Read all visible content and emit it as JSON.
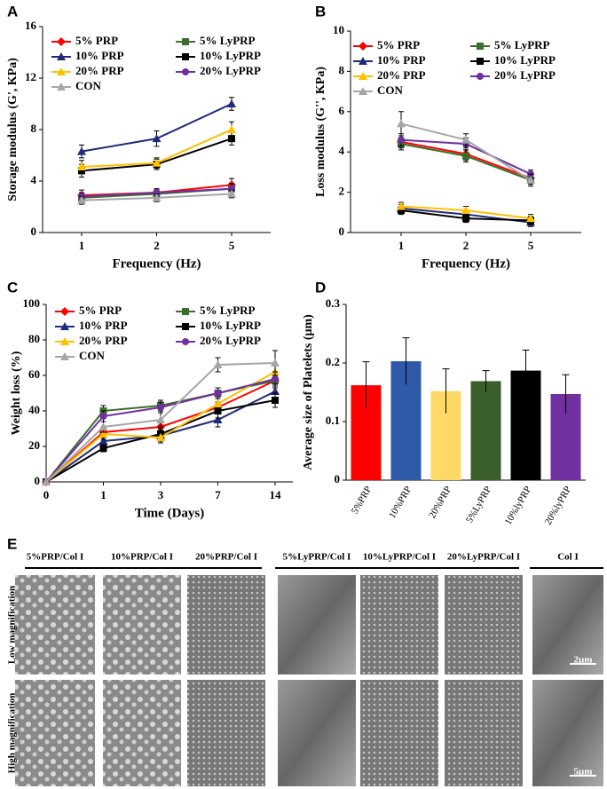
{
  "chart_data": [
    {
      "type": "line",
      "label": "A",
      "x_label": "Frequency (Hz)",
      "y_label": "Storage modulus (G', KPa)",
      "categories": [
        "1",
        "2",
        "5"
      ],
      "ylim": [
        0,
        16
      ],
      "yticks": [
        0,
        4,
        8,
        12,
        16
      ],
      "series": [
        {
          "name": "5% PRP",
          "color": "#ff0000",
          "marker": "diamond",
          "values": [
            2.9,
            3.1,
            3.7
          ],
          "errors": [
            0.4,
            0.3,
            0.5
          ]
        },
        {
          "name": "5% LyPRP",
          "color": "#3a6e2a",
          "marker": "square",
          "values": [
            2.7,
            3.0,
            3.4
          ],
          "errors": [
            0.3,
            0.3,
            0.4
          ]
        },
        {
          "name": "10% PRP",
          "color": "#1f2a7a",
          "marker": "triangle",
          "values": [
            6.3,
            7.3,
            10.0
          ],
          "errors": [
            0.5,
            0.6,
            0.5
          ]
        },
        {
          "name": "10% LyPRP",
          "color": "#000000",
          "marker": "square",
          "values": [
            4.8,
            5.3,
            7.3
          ],
          "errors": [
            0.5,
            0.4,
            0.5
          ]
        },
        {
          "name": "20% PRP",
          "color": "#ffc000",
          "marker": "triangle",
          "values": [
            5.1,
            5.4,
            8.0
          ],
          "errors": [
            0.5,
            0.4,
            0.6
          ]
        },
        {
          "name": "20% LyPRP",
          "color": "#7030a0",
          "marker": "circle",
          "values": [
            2.8,
            3.1,
            3.4
          ],
          "errors": [
            0.3,
            0.3,
            0.4
          ]
        },
        {
          "name": "CON",
          "color": "#a6a6a6",
          "marker": "triangle",
          "values": [
            2.5,
            2.7,
            3.0
          ],
          "errors": [
            0.3,
            0.3,
            0.3
          ]
        }
      ]
    },
    {
      "type": "line",
      "label": "B",
      "x_label": "Frequency (Hz)",
      "y_label": "Loss modulus (G'', KPa)",
      "categories": [
        "1",
        "2",
        "5"
      ],
      "ylim": [
        0,
        10
      ],
      "yticks": [
        0,
        2,
        4,
        6,
        8,
        10
      ],
      "series": [
        {
          "name": "5% PRP",
          "color": "#ff0000",
          "marker": "diamond",
          "values": [
            4.5,
            3.9,
            2.7
          ],
          "errors": [
            0.3,
            0.3,
            0.2
          ]
        },
        {
          "name": "5% LyPRP",
          "color": "#3a6e2a",
          "marker": "square",
          "values": [
            4.4,
            3.8,
            2.6
          ],
          "errors": [
            0.3,
            0.3,
            0.2
          ]
        },
        {
          "name": "10% PRP",
          "color": "#1f2a7a",
          "marker": "triangle",
          "values": [
            1.2,
            0.9,
            0.5
          ],
          "errors": [
            0.2,
            0.2,
            0.2
          ]
        },
        {
          "name": "10% LyPRP",
          "color": "#000000",
          "marker": "square",
          "values": [
            1.1,
            0.7,
            0.6
          ],
          "errors": [
            0.2,
            0.2,
            0.2
          ]
        },
        {
          "name": "20% PRP",
          "color": "#ffc000",
          "marker": "triangle",
          "values": [
            1.3,
            1.1,
            0.7
          ],
          "errors": [
            0.2,
            0.2,
            0.2
          ]
        },
        {
          "name": "20% LyPRP",
          "color": "#7030a0",
          "marker": "circle",
          "values": [
            4.6,
            4.4,
            2.9
          ],
          "errors": [
            0.3,
            0.3,
            0.2
          ]
        },
        {
          "name": "CON",
          "color": "#a6a6a6",
          "marker": "triangle",
          "values": [
            5.4,
            4.6,
            2.6
          ],
          "errors": [
            0.6,
            0.3,
            0.3
          ]
        }
      ]
    },
    {
      "type": "line",
      "label": "C",
      "x_label": "Time (Days)",
      "y_label": "Weight loss (%)",
      "categories": [
        "0",
        "1",
        "3",
        "7",
        "14"
      ],
      "ylim": [
        0,
        100
      ],
      "yticks": [
        0,
        20,
        40,
        60,
        80,
        100
      ],
      "series": [
        {
          "name": "5% PRP",
          "color": "#ff0000",
          "marker": "diamond",
          "values": [
            0,
            28,
            31,
            42,
            57
          ],
          "errors": [
            0,
            3,
            3,
            3,
            4
          ]
        },
        {
          "name": "5% LyPRP",
          "color": "#3a6e2a",
          "marker": "square",
          "values": [
            0,
            40,
            43,
            50,
            57
          ],
          "errors": [
            0,
            3,
            3,
            3,
            4
          ]
        },
        {
          "name": "10% PRP",
          "color": "#1f2a7a",
          "marker": "triangle",
          "values": [
            0,
            23,
            26,
            35,
            51
          ],
          "errors": [
            0,
            3,
            3,
            4,
            4
          ]
        },
        {
          "name": "10% LyPRP",
          "color": "#000000",
          "marker": "square",
          "values": [
            0,
            19,
            27,
            40,
            46
          ],
          "errors": [
            0,
            2,
            3,
            4,
            4
          ]
        },
        {
          "name": "20% PRP",
          "color": "#ffc000",
          "marker": "triangle",
          "values": [
            0,
            27,
            25,
            44,
            62
          ],
          "errors": [
            0,
            3,
            3,
            4,
            4
          ]
        },
        {
          "name": "20% LyPRP",
          "color": "#7030a0",
          "marker": "circle",
          "values": [
            0,
            37,
            42,
            50,
            58
          ],
          "errors": [
            0,
            3,
            3,
            3,
            4
          ]
        },
        {
          "name": "CON",
          "color": "#a6a6a6",
          "marker": "triangle",
          "values": [
            0,
            31,
            35,
            66,
            67
          ],
          "errors": [
            0,
            3,
            4,
            4,
            7
          ]
        }
      ]
    },
    {
      "type": "bar",
      "label": "D",
      "y_label": "Average size of Platelets (μm)",
      "categories": [
        "5%PRP",
        "10%PRP",
        "20%PRP",
        "5%LyPRP",
        "10%lyPRP",
        "20%lyPRP"
      ],
      "values": [
        0.162,
        0.203,
        0.152,
        0.169,
        0.187,
        0.147
      ],
      "errors": [
        0.04,
        0.04,
        0.038,
        0.018,
        0.035,
        0.033
      ],
      "colors": [
        "#ff0000",
        "#2e5aa8",
        "#ffd966",
        "#3a5f2a",
        "#000000",
        "#7030a0"
      ],
      "ylim": [
        0,
        0.3
      ],
      "yticks": [
        0,
        0.1,
        0.2,
        0.3
      ]
    }
  ],
  "micrographs": {
    "label": "E",
    "columns": [
      "5%PRP/Col I",
      "10%PRP/Col I",
      "20%PRP/Col I",
      "5%LyPRP/Col I",
      "10%LyPRP/Col I",
      "20%LyPRP/Col I",
      "Col I"
    ],
    "rows": [
      "Low magnification",
      "High magnification"
    ],
    "scale_bars": [
      "2μm",
      "5μm"
    ]
  }
}
